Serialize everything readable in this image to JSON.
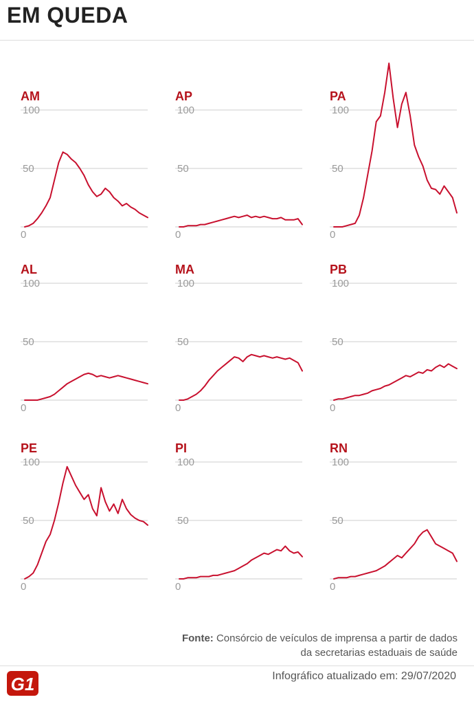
{
  "header": {
    "title": "EM QUEDA"
  },
  "colors": {
    "line": "#c8102e",
    "title": "#b5121b",
    "grid": "#cccccc",
    "tick": "#9a9a9a",
    "logo": "#c4170c"
  },
  "chart_data": [
    {
      "type": "line",
      "title": "AM",
      "ylim": [
        0,
        100
      ],
      "yticks": [
        0,
        50,
        100
      ],
      "gridlines": true,
      "series": [
        {
          "values": [
            0,
            1,
            3,
            7,
            12,
            18,
            25,
            40,
            55,
            64,
            62,
            58,
            55,
            50,
            44,
            36,
            30,
            26,
            28,
            33,
            30,
            25,
            22,
            18,
            20,
            17,
            15,
            12,
            10,
            8
          ]
        }
      ]
    },
    {
      "type": "line",
      "title": "AP",
      "ylim": [
        0,
        100
      ],
      "yticks": [
        0,
        50,
        100
      ],
      "gridlines": true,
      "series": [
        {
          "values": [
            0,
            0,
            1,
            1,
            1,
            2,
            2,
            3,
            4,
            5,
            6,
            7,
            8,
            9,
            8,
            9,
            10,
            8,
            9,
            8,
            9,
            8,
            7,
            7,
            8,
            6,
            6,
            6,
            7,
            2
          ]
        }
      ]
    },
    {
      "type": "line",
      "title": "PA",
      "ylim": [
        0,
        100
      ],
      "yticks": [
        0,
        50,
        100
      ],
      "gridlines": true,
      "series": [
        {
          "values": [
            0,
            0,
            0,
            1,
            2,
            3,
            10,
            25,
            45,
            65,
            90,
            95,
            115,
            140,
            110,
            85,
            105,
            115,
            95,
            70,
            60,
            52,
            40,
            33,
            32,
            28,
            35,
            30,
            25,
            12
          ]
        }
      ]
    },
    {
      "type": "line",
      "title": "AL",
      "ylim": [
        0,
        100
      ],
      "yticks": [
        0,
        50,
        100
      ],
      "gridlines": true,
      "series": [
        {
          "values": [
            0,
            0,
            0,
            0,
            1,
            2,
            3,
            5,
            8,
            11,
            14,
            16,
            18,
            20,
            22,
            23,
            22,
            20,
            21,
            20,
            19,
            20,
            21,
            20,
            19,
            18,
            17,
            16,
            15,
            14
          ]
        }
      ]
    },
    {
      "type": "line",
      "title": "MA",
      "ylim": [
        0,
        100
      ],
      "yticks": [
        0,
        50,
        100
      ],
      "gridlines": true,
      "series": [
        {
          "values": [
            0,
            0,
            1,
            3,
            5,
            8,
            12,
            17,
            21,
            25,
            28,
            31,
            34,
            37,
            36,
            33,
            37,
            39,
            38,
            37,
            38,
            37,
            36,
            37,
            36,
            35,
            36,
            34,
            32,
            25
          ]
        }
      ]
    },
    {
      "type": "line",
      "title": "PB",
      "ylim": [
        0,
        100
      ],
      "yticks": [
        0,
        50,
        100
      ],
      "gridlines": true,
      "series": [
        {
          "values": [
            0,
            1,
            1,
            2,
            3,
            4,
            4,
            5,
            6,
            8,
            9,
            10,
            12,
            13,
            15,
            17,
            19,
            21,
            20,
            22,
            24,
            23,
            26,
            25,
            28,
            30,
            28,
            31,
            29,
            27
          ]
        }
      ]
    },
    {
      "type": "line",
      "title": "PE",
      "ylim": [
        0,
        100
      ],
      "yticks": [
        0,
        50,
        100
      ],
      "gridlines": true,
      "series": [
        {
          "values": [
            0,
            2,
            5,
            12,
            22,
            32,
            38,
            50,
            65,
            82,
            96,
            88,
            80,
            74,
            68,
            72,
            60,
            54,
            78,
            66,
            58,
            64,
            56,
            68,
            60,
            55,
            52,
            50,
            49,
            46
          ]
        }
      ]
    },
    {
      "type": "line",
      "title": "PI",
      "ylim": [
        0,
        100
      ],
      "yticks": [
        0,
        50,
        100
      ],
      "gridlines": true,
      "series": [
        {
          "values": [
            0,
            0,
            1,
            1,
            1,
            2,
            2,
            2,
            3,
            3,
            4,
            5,
            6,
            7,
            9,
            11,
            13,
            16,
            18,
            20,
            22,
            21,
            23,
            25,
            24,
            28,
            24,
            22,
            23,
            19
          ]
        }
      ]
    },
    {
      "type": "line",
      "title": "RN",
      "ylim": [
        0,
        100
      ],
      "yticks": [
        0,
        50,
        100
      ],
      "gridlines": true,
      "series": [
        {
          "values": [
            0,
            1,
            1,
            1,
            2,
            2,
            3,
            4,
            5,
            6,
            7,
            9,
            11,
            14,
            17,
            20,
            18,
            22,
            26,
            30,
            36,
            40,
            42,
            36,
            30,
            28,
            26,
            24,
            22,
            15
          ]
        }
      ]
    }
  ],
  "footer": {
    "source_label": "Fonte:",
    "source_text": "Consórcio de veículos de imprensa a partir de dados da secretarias estaduais de saúde",
    "logo_text": "G1",
    "updated_text": "Infográfico atualizado em: 29/07/2020"
  }
}
